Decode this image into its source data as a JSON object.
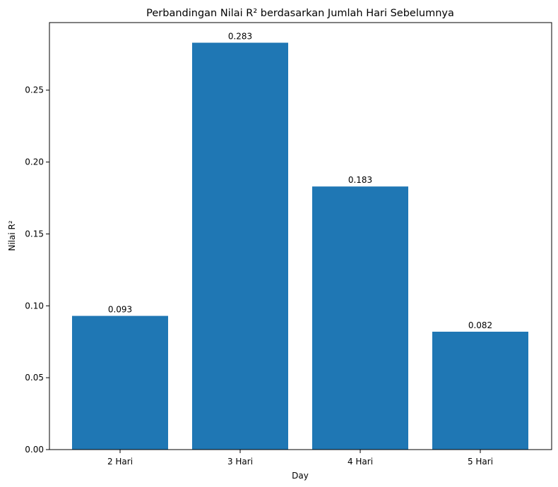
{
  "chart_data": {
    "type": "bar",
    "title": "Perbandingan Nilai R² berdasarkan Jumlah Hari Sebelumnya",
    "xlabel": "Day",
    "ylabel": "Nilai R²",
    "categories": [
      "2 Hari",
      "3 Hari",
      "4 Hari",
      "5 Hari"
    ],
    "values": [
      0.093,
      0.283,
      0.183,
      0.082
    ],
    "data_labels": [
      "0.093",
      "0.283",
      "0.183",
      "0.082"
    ],
    "ylim": [
      0,
      0.297
    ],
    "yticks": [
      0.0,
      0.05,
      0.1,
      0.15,
      0.2,
      0.25
    ],
    "ytick_labels": [
      "0.00",
      "0.05",
      "0.10",
      "0.15",
      "0.20",
      "0.25"
    ],
    "grid": false,
    "bar_color": "#1f77b4"
  }
}
